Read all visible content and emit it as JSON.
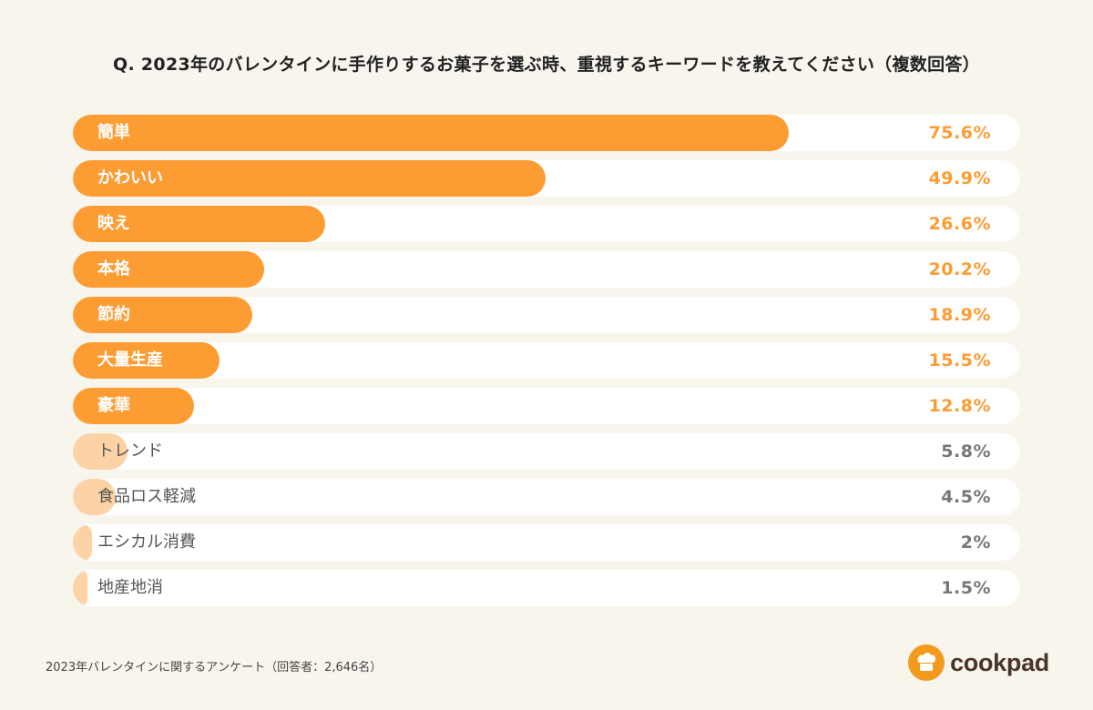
{
  "title": "Q. 2023年のバレンタインに手作りするお菓子を選ぶ時、重視するキーワードを教えてください（複数回答）",
  "footer": "2023年バレンタインに関するアンケート（回答者：2,646名）",
  "logo_text": "cookpad",
  "colors": {
    "background": "#f8f5ed",
    "track": "#ffffff",
    "major_bar": "#fd9c33",
    "minor_bar": "#fdd2a4",
    "major_value": "#fd9c33",
    "minor_value": "#777777"
  },
  "chart_data": {
    "type": "bar",
    "orientation": "horizontal",
    "title": "Q. 2023年のバレンタインに手作りするお菓子を選ぶ時、重視するキーワードを教えてください（複数回答）",
    "categories": [
      "簡単",
      "かわいい",
      "映え",
      "本格",
      "節約",
      "大量生産",
      "豪華",
      "トレンド",
      "食品ロス軽減",
      "エシカル消費",
      "地産地消"
    ],
    "values": [
      75.6,
      49.9,
      26.6,
      20.2,
      18.9,
      15.5,
      12.8,
      5.8,
      4.5,
      2,
      1.5
    ],
    "value_labels": [
      "75.6%",
      "49.9%",
      "26.6%",
      "20.2%",
      "18.9%",
      "15.5%",
      "12.8%",
      "5.8%",
      "4.5%",
      "2%",
      "1.5%"
    ],
    "unit": "%",
    "xlim": [
      0,
      100
    ],
    "highlight_threshold": 10,
    "grid": false,
    "legend": "none"
  }
}
